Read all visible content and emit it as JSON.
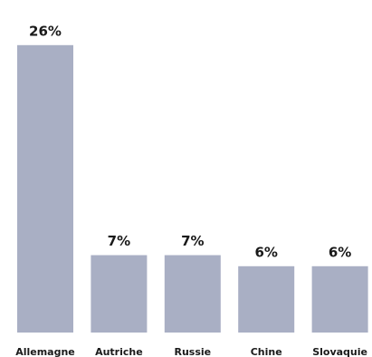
{
  "chart_data": {
    "type": "bar",
    "categories": [
      "Allemagne",
      "Autriche",
      "Russie",
      "Chine",
      "Slovaquie"
    ],
    "values": [
      26,
      7,
      7,
      6,
      6
    ],
    "value_labels": [
      "26%",
      "7%",
      "7%",
      "6%",
      "6%"
    ],
    "color": "#a9afc4"
  }
}
